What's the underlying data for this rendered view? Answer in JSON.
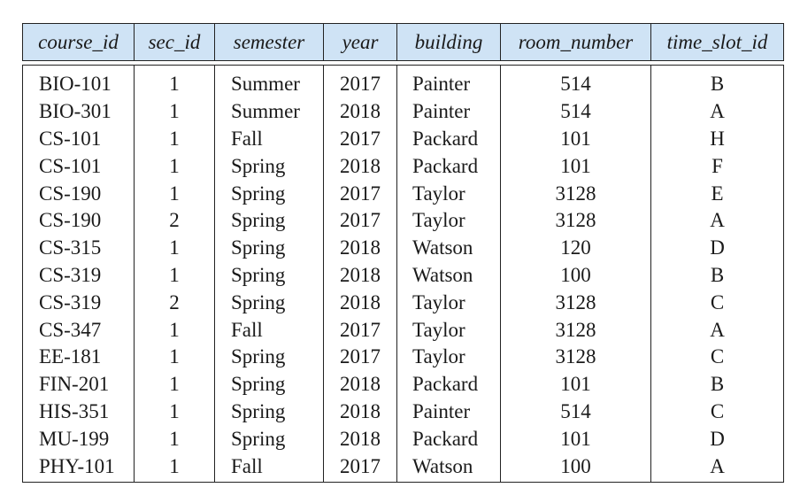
{
  "headers": [
    "course_id",
    "sec_id",
    "semester",
    "year",
    "building",
    "room_number",
    "time_slot_id"
  ],
  "rows": [
    [
      "BIO-101",
      "1",
      "Summer",
      "2017",
      "Painter",
      "514",
      "B"
    ],
    [
      "BIO-301",
      "1",
      "Summer",
      "2018",
      "Painter",
      "514",
      "A"
    ],
    [
      "CS-101",
      "1",
      "Fall",
      "2017",
      "Packard",
      "101",
      "H"
    ],
    [
      "CS-101",
      "1",
      "Spring",
      "2018",
      "Packard",
      "101",
      "F"
    ],
    [
      "CS-190",
      "1",
      "Spring",
      "2017",
      "Taylor",
      "3128",
      "E"
    ],
    [
      "CS-190",
      "2",
      "Spring",
      "2017",
      "Taylor",
      "3128",
      "A"
    ],
    [
      "CS-315",
      "1",
      "Spring",
      "2018",
      "Watson",
      "120",
      "D"
    ],
    [
      "CS-319",
      "1",
      "Spring",
      "2018",
      "Watson",
      "100",
      "B"
    ],
    [
      "CS-319",
      "2",
      "Spring",
      "2018",
      "Taylor",
      "3128",
      "C"
    ],
    [
      "CS-347",
      "1",
      "Fall",
      "2017",
      "Taylor",
      "3128",
      "A"
    ],
    [
      "EE-181",
      "1",
      "Spring",
      "2017",
      "Taylor",
      "3128",
      "C"
    ],
    [
      "FIN-201",
      "1",
      "Spring",
      "2018",
      "Packard",
      "101",
      "B"
    ],
    [
      "HIS-351",
      "1",
      "Spring",
      "2018",
      "Painter",
      "514",
      "C"
    ],
    [
      "MU-199",
      "1",
      "Spring",
      "2018",
      "Packard",
      "101",
      "D"
    ],
    [
      "PHY-101",
      "1",
      "Fall",
      "2017",
      "Watson",
      "100",
      "A"
    ]
  ],
  "colors": {
    "header_bg": "#cfe3f5",
    "border": "#222222"
  }
}
